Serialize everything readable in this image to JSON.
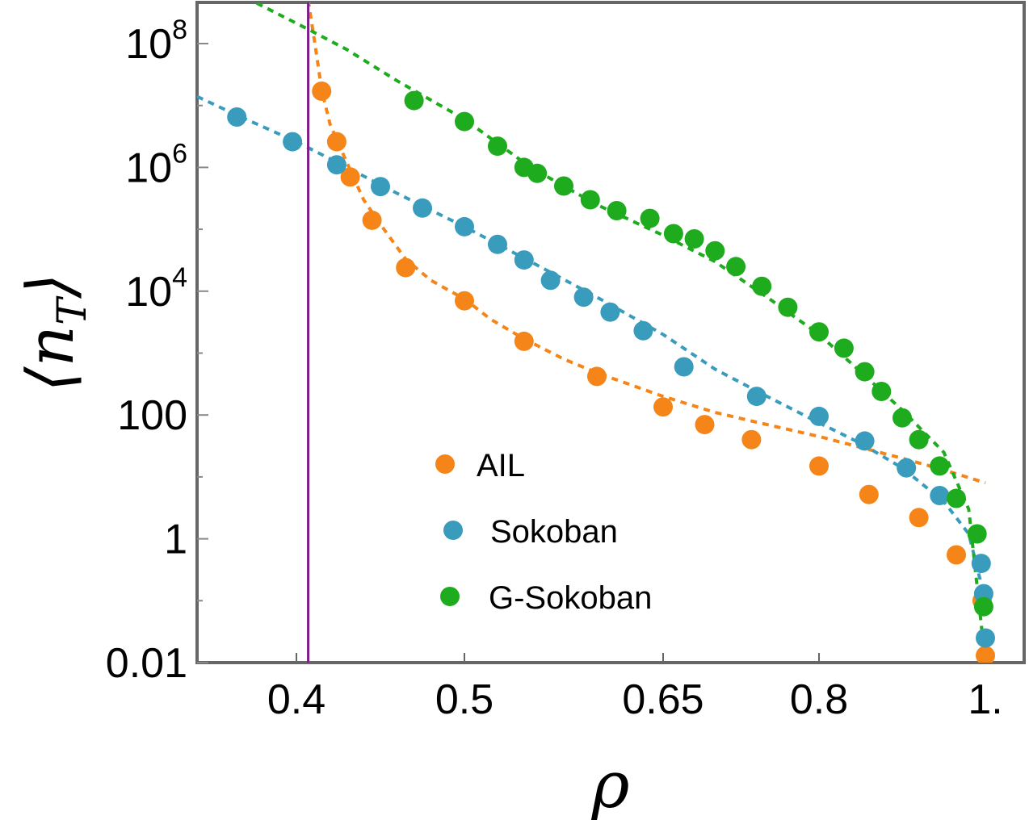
{
  "chart_data": {
    "type": "scatter",
    "title": "",
    "xlabel": "ρ",
    "ylabel": "⟨n_T⟩",
    "x_scale": "custom-nonlinear",
    "y_scale": "log",
    "x_ticks": [
      {
        "value": 0.4,
        "label": "0.4"
      },
      {
        "value": 0.5,
        "label": "0.5"
      },
      {
        "value": 0.65,
        "label": "0.65"
      },
      {
        "value": 0.8,
        "label": "0.8"
      },
      {
        "value": 1.0,
        "label": "1."
      }
    ],
    "y_ticks": [
      {
        "value": 0.01,
        "label": "0.01"
      },
      {
        "value": 1,
        "label": "1"
      },
      {
        "value": 100,
        "label": "100"
      },
      {
        "value": 10000,
        "label": "10",
        "exponent": "4"
      },
      {
        "value": 1000000,
        "label": "10",
        "exponent": "6"
      },
      {
        "value": 100000000,
        "label": "10",
        "exponent": "8"
      }
    ],
    "ylim": [
      0.01,
      500000000
    ],
    "xlim": [
      0.35,
      1.02
    ],
    "critical_line": {
      "x": 0.407,
      "color": "#7f1d8a"
    },
    "legend_position": "center",
    "series": [
      {
        "name": "AIL",
        "color": "#f58518",
        "points": [
          [
            0.415,
            17000000
          ],
          [
            0.424,
            2600000
          ],
          [
            0.432,
            700000
          ],
          [
            0.445,
            140000
          ],
          [
            0.465,
            24000
          ],
          [
            0.5,
            7000
          ],
          [
            0.545,
            1550
          ],
          [
            0.6,
            420
          ],
          [
            0.65,
            135
          ],
          [
            0.69,
            70
          ],
          [
            0.735,
            40
          ],
          [
            0.8,
            15
          ],
          [
            0.86,
            5.2
          ],
          [
            0.92,
            2.2
          ],
          [
            0.965,
            0.55
          ],
          [
            0.996,
            0.1
          ],
          [
            1.0,
            0.013
          ]
        ],
        "fit": [
          [
            0.407,
            500000000
          ],
          [
            0.411,
            100000000
          ],
          [
            0.415,
            18000000
          ],
          [
            0.42,
            5000000
          ],
          [
            0.43,
            1200000
          ],
          [
            0.44,
            300000
          ],
          [
            0.45,
            120000
          ],
          [
            0.465,
            33000
          ],
          [
            0.48,
            15000
          ],
          [
            0.5,
            7500
          ],
          [
            0.52,
            3500
          ],
          [
            0.545,
            1700
          ],
          [
            0.575,
            800
          ],
          [
            0.6,
            480
          ],
          [
            0.65,
            200
          ],
          [
            0.7,
            110
          ],
          [
            0.75,
            70
          ],
          [
            0.8,
            45
          ],
          [
            0.85,
            30
          ],
          [
            0.9,
            20
          ],
          [
            0.95,
            13
          ],
          [
            1.0,
            8
          ]
        ]
      },
      {
        "name": "Sokoban",
        "color": "#3a9cbc",
        "points": [
          [
            0.37,
            6500000
          ],
          [
            0.398,
            2600000
          ],
          [
            0.424,
            1100000
          ],
          [
            0.45,
            490000
          ],
          [
            0.475,
            220000
          ],
          [
            0.5,
            110000
          ],
          [
            0.525,
            57000
          ],
          [
            0.545,
            32000
          ],
          [
            0.565,
            15000
          ],
          [
            0.59,
            8000
          ],
          [
            0.61,
            4600
          ],
          [
            0.635,
            2300
          ],
          [
            0.67,
            600
          ],
          [
            0.74,
            200
          ],
          [
            0.8,
            95
          ],
          [
            0.855,
            38
          ],
          [
            0.905,
            14
          ],
          [
            0.945,
            5
          ],
          [
            0.995,
            0.4
          ],
          [
            0.998,
            0.13
          ],
          [
            1.0,
            0.025
          ]
        ],
        "fit": [
          [
            0.35,
            14000000
          ],
          [
            0.37,
            7000000
          ],
          [
            0.4,
            2600000
          ],
          [
            0.43,
            1000000
          ],
          [
            0.46,
            380000
          ],
          [
            0.5,
            110000
          ],
          [
            0.55,
            30000
          ],
          [
            0.6,
            8000
          ],
          [
            0.65,
            2000
          ],
          [
            0.7,
            550
          ],
          [
            0.75,
            200
          ],
          [
            0.8,
            75
          ],
          [
            0.85,
            35
          ],
          [
            0.9,
            14
          ],
          [
            0.95,
            4
          ],
          [
            0.98,
            1.2
          ],
          [
            1.0,
            0.1
          ]
        ]
      },
      {
        "name": "G-Sokoban",
        "color": "#1eab1e",
        "points": [
          [
            0.47,
            12000000
          ],
          [
            0.5,
            5500000
          ],
          [
            0.525,
            2200000
          ],
          [
            0.545,
            1000000
          ],
          [
            0.555,
            800000
          ],
          [
            0.575,
            500000
          ],
          [
            0.595,
            300000
          ],
          [
            0.615,
            200000
          ],
          [
            0.64,
            150000
          ],
          [
            0.66,
            85000
          ],
          [
            0.68,
            70000
          ],
          [
            0.7,
            45000
          ],
          [
            0.72,
            25000
          ],
          [
            0.745,
            12000
          ],
          [
            0.77,
            5500
          ],
          [
            0.8,
            2200
          ],
          [
            0.83,
            1200
          ],
          [
            0.855,
            500
          ],
          [
            0.875,
            240
          ],
          [
            0.9,
            90
          ],
          [
            0.92,
            40
          ],
          [
            0.945,
            15
          ],
          [
            0.965,
            4.5
          ],
          [
            0.99,
            1.2
          ],
          [
            0.998,
            0.08
          ]
        ],
        "fit": [
          [
            0.38,
            450000000
          ],
          [
            0.407,
            170000000
          ],
          [
            0.43,
            80000000
          ],
          [
            0.46,
            25000000
          ],
          [
            0.5,
            6000000
          ],
          [
            0.55,
            1000000
          ],
          [
            0.6,
            250000
          ],
          [
            0.65,
            80000
          ],
          [
            0.7,
            30000
          ],
          [
            0.75,
            8000
          ],
          [
            0.8,
            2000
          ],
          [
            0.85,
            500
          ],
          [
            0.9,
            120
          ],
          [
            0.95,
            25
          ],
          [
            0.98,
            3
          ],
          [
            1.0,
            0.01
          ]
        ]
      }
    ]
  }
}
